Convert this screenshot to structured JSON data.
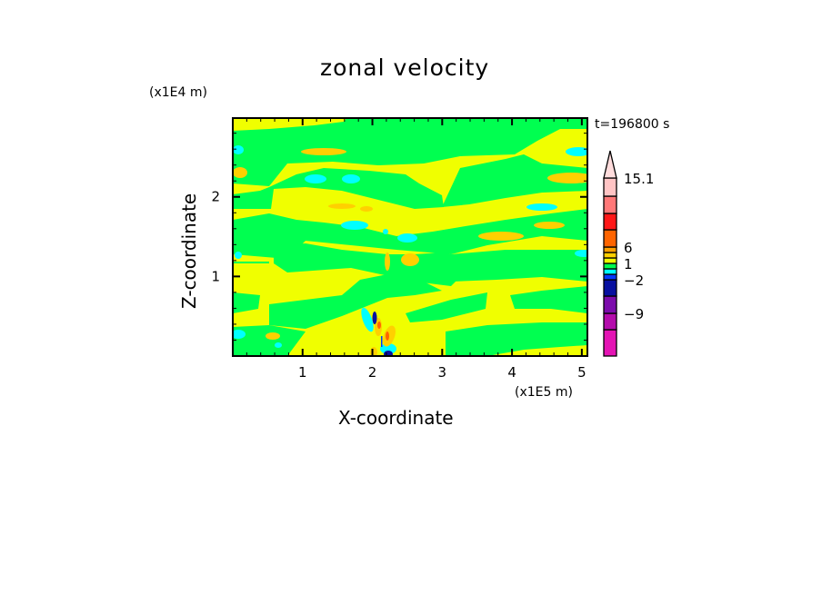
{
  "chart_data": {
    "type": "heatmap",
    "subtype": "filled-contour",
    "title": "zonal velocity",
    "xlabel": "X-coordinate",
    "ylabel": "Z-coordinate",
    "x_unit": "(x1E5 m)",
    "y_unit": "(x1E4 m)",
    "time_label": "t=196800 s",
    "xlim": [
      0,
      5.08
    ],
    "ylim": [
      0,
      2.99
    ],
    "xticks": [
      "1",
      "2",
      "3",
      "4",
      "5"
    ],
    "xtick_values": [
      1,
      2,
      3,
      4,
      5
    ],
    "yticks": [
      "1",
      "2"
    ],
    "ytick_values": [
      1,
      2
    ],
    "colorbar": {
      "labels": [
        "15.1",
        "6",
        "1",
        "−2",
        "−9"
      ],
      "label_boundary_index": [
        14,
        10,
        7,
        4,
        2
      ],
      "colors_bottom_to_top": [
        "#e414b4",
        "#b40cac",
        "#7c0cac",
        "#0810a0",
        "#0438ff",
        "#00ffff",
        "#00ff50",
        "#f0ff00",
        "#ffd000",
        "#ffa000",
        "#ff6400",
        "#ff1818",
        "#ff7878",
        "#ffc4c4"
      ],
      "extend_top_color": "#ffdcdc"
    }
  }
}
